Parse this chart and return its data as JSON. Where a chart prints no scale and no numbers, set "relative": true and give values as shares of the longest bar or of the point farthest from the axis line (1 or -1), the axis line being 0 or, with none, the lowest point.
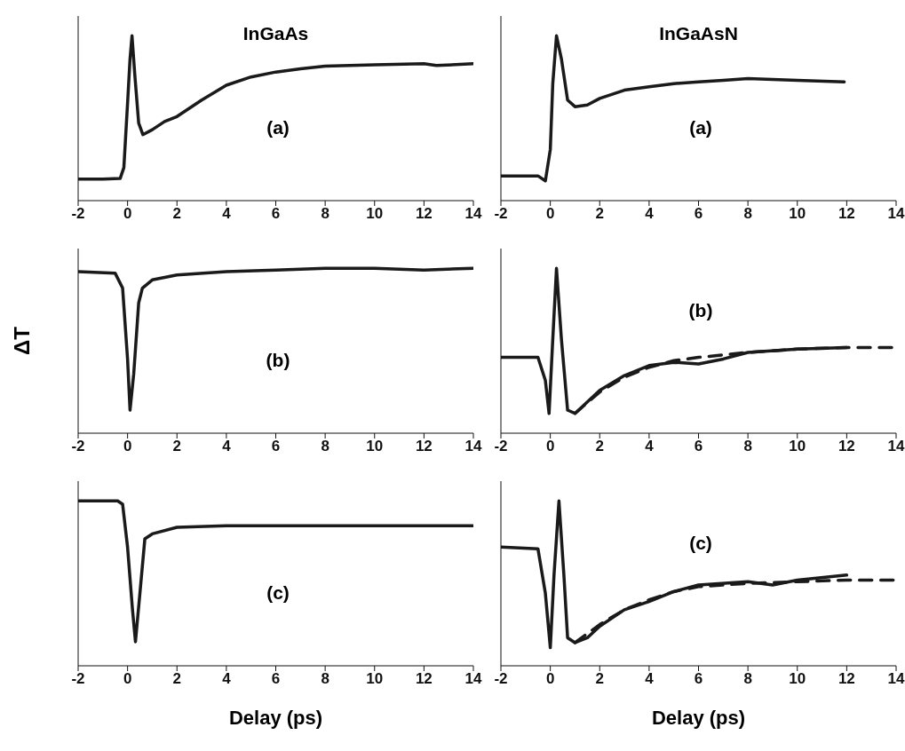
{
  "chart_data": [
    {
      "type": "line",
      "relative": true,
      "title": "InGaAs",
      "annotations": [
        "(a)"
      ],
      "xlim": [
        -2,
        14
      ],
      "xticks": [
        -2,
        0,
        2,
        4,
        6,
        8,
        10,
        12,
        14
      ],
      "series": [
        {
          "color": "#1a1a1a",
          "x": [
            -2,
            -1,
            -0.3,
            -0.15,
            0,
            0.1,
            0.18,
            0.3,
            0.45,
            0.62,
            1,
            1.5,
            2,
            3,
            4,
            5,
            6,
            7,
            8,
            10,
            12,
            12.5,
            14
          ],
          "values": [
            0.13,
            0.13,
            0.134,
            0.2,
            0.59,
            0.86,
            1.0,
            0.75,
            0.47,
            0.4,
            0.43,
            0.48,
            0.51,
            0.61,
            0.7,
            0.75,
            0.78,
            0.8,
            0.816,
            0.824,
            0.83,
            0.82,
            0.83
          ]
        }
      ]
    },
    {
      "type": "line",
      "relative": true,
      "title": "InGaAsN",
      "annotations": [
        "(a)"
      ],
      "xlim": [
        -2,
        14
      ],
      "xticks": [
        -2,
        0,
        2,
        4,
        6,
        8,
        10,
        12,
        14
      ],
      "series": [
        {
          "color": "#1a1a1a",
          "x": [
            -2,
            -1,
            -0.5,
            -0.2,
            0,
            0.1,
            0.25,
            0.45,
            0.7,
            1,
            1.5,
            2,
            3,
            4,
            5,
            6,
            7,
            8,
            10,
            11.9
          ],
          "values": [
            0.15,
            0.15,
            0.15,
            0.12,
            0.31,
            0.71,
            1.0,
            0.86,
            0.61,
            0.57,
            0.58,
            0.62,
            0.67,
            0.69,
            0.71,
            0.72,
            0.73,
            0.74,
            0.73,
            0.72
          ]
        }
      ]
    },
    {
      "type": "line",
      "relative": true,
      "ylabel": "ΔT",
      "annotations": [
        "(b)"
      ],
      "xlim": [
        -2,
        14
      ],
      "xticks": [
        -2,
        0,
        2,
        4,
        6,
        8,
        10,
        12,
        14
      ],
      "series": [
        {
          "color": "#1a1a1a",
          "x": [
            -2,
            -0.5,
            -0.2,
            0,
            0.1,
            0.25,
            0.45,
            0.6,
            1,
            2,
            4,
            6,
            8,
            10,
            12,
            14
          ],
          "values": [
            0.98,
            0.97,
            0.88,
            0.45,
            0.14,
            0.36,
            0.79,
            0.88,
            0.93,
            0.96,
            0.98,
            0.99,
            1.0,
            1.0,
            0.99,
            1.0
          ]
        }
      ]
    },
    {
      "type": "line",
      "relative": true,
      "annotations": [
        "(b)"
      ],
      "xlim": [
        -2,
        14
      ],
      "xticks": [
        -2,
        0,
        2,
        4,
        6,
        8,
        10,
        12,
        14
      ],
      "series": [
        {
          "color": "#1a1a1a",
          "x": [
            -2,
            -0.5,
            -0.2,
            -0.05,
            0.1,
            0.25,
            0.45,
            0.7,
            1,
            1.5,
            2,
            3,
            4,
            5,
            6,
            7,
            8,
            10,
            12
          ],
          "values": [
            0.46,
            0.46,
            0.32,
            0.12,
            0.57,
            1.0,
            0.57,
            0.14,
            0.12,
            0.19,
            0.26,
            0.35,
            0.41,
            0.43,
            0.42,
            0.45,
            0.49,
            0.51,
            0.52
          ]
        },
        {
          "type": "line",
          "line_style": "dashed",
          "color": "#1a1a1a",
          "x": [
            1,
            2,
            3,
            4,
            5,
            6,
            8,
            10,
            12,
            14
          ],
          "values": [
            0.12,
            0.25,
            0.34,
            0.4,
            0.44,
            0.46,
            0.49,
            0.51,
            0.52,
            0.52
          ]
        }
      ]
    },
    {
      "type": "line",
      "relative": true,
      "xlabel": "Delay (ps)",
      "annotations": [
        "(c)"
      ],
      "xlim": [
        -2,
        14
      ],
      "xticks": [
        -2,
        0,
        2,
        4,
        6,
        8,
        10,
        12,
        14
      ],
      "series": [
        {
          "color": "#1a1a1a",
          "x": [
            -2,
            -0.4,
            -0.2,
            0,
            0.2,
            0.32,
            0.5,
            0.7,
            1,
            2,
            4,
            8,
            14
          ],
          "values": [
            1.0,
            1.0,
            0.98,
            0.72,
            0.34,
            0.146,
            0.44,
            0.77,
            0.8,
            0.84,
            0.85,
            0.85,
            0.85
          ]
        }
      ]
    },
    {
      "type": "line",
      "relative": true,
      "xlabel": "Delay (ps)",
      "annotations": [
        "(c)"
      ],
      "xlim": [
        -2,
        14
      ],
      "xticks": [
        -2,
        0,
        2,
        4,
        6,
        8,
        10,
        12,
        14
      ],
      "series": [
        {
          "color": "#1a1a1a",
          "x": [
            -2,
            -0.5,
            -0.2,
            0,
            0.15,
            0.35,
            0.55,
            0.7,
            1,
            1.5,
            2,
            3,
            4,
            5,
            6,
            8,
            9,
            10,
            12
          ],
          "values": [
            0.72,
            0.71,
            0.44,
            0.11,
            0.55,
            1.0,
            0.55,
            0.17,
            0.14,
            0.17,
            0.24,
            0.34,
            0.39,
            0.45,
            0.49,
            0.51,
            0.49,
            0.52,
            0.55
          ]
        },
        {
          "type": "line",
          "line_style": "dashed",
          "color": "#1a1a1a",
          "x": [
            1,
            2,
            3,
            4,
            5,
            6,
            8,
            10,
            12,
            14
          ],
          "values": [
            0.14,
            0.25,
            0.34,
            0.4,
            0.45,
            0.48,
            0.5,
            0.51,
            0.52,
            0.52
          ]
        }
      ]
    }
  ]
}
